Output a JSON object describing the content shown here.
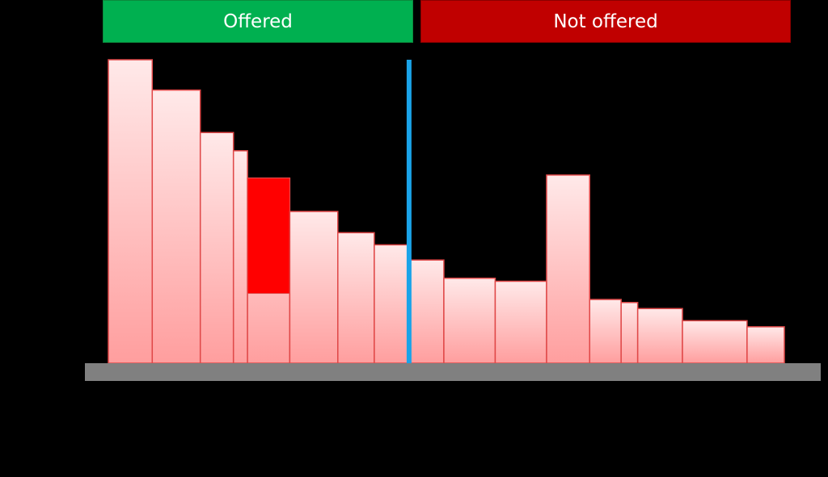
{
  "groups": {
    "offered": {
      "label": "Offered",
      "color": "#00b050"
    },
    "not_offered": {
      "label": "Not offered",
      "color": "#c00000"
    }
  },
  "colors": {
    "background": "#000000",
    "bar_fill_top": "#ffe9e9",
    "bar_fill_bottom": "#ff9e9e",
    "bar_stroke": "#e04848",
    "highlight": "#ff0000",
    "divider": "#1aa3e8",
    "baseline": "#808080"
  },
  "chart_data": {
    "type": "bar",
    "note_units": "relative (tallest bar = 100); bar widths are relative category widths",
    "ylim": [
      0,
      100
    ],
    "bars": [
      {
        "group": "offered",
        "width": 53,
        "value": 100
      },
      {
        "group": "offered",
        "width": 58,
        "value": 90
      },
      {
        "group": "offered",
        "width": 40,
        "value": 76
      },
      {
        "group": "offered",
        "width": 17,
        "value": 70
      },
      {
        "group": "offered",
        "width": 51,
        "value": 61,
        "highlight_above": 23
      },
      {
        "group": "offered",
        "width": 58,
        "value": 50
      },
      {
        "group": "offered",
        "width": 44,
        "value": 43
      },
      {
        "group": "offered",
        "width": 42,
        "value": 39
      },
      {
        "group": "not_offered",
        "width": 42,
        "value": 34
      },
      {
        "group": "not_offered",
        "width": 62,
        "value": 28
      },
      {
        "group": "not_offered",
        "width": 62,
        "value": 27
      },
      {
        "group": "not_offered",
        "width": 52,
        "value": 62
      },
      {
        "group": "not_offered",
        "width": 38,
        "value": 21
      },
      {
        "group": "not_offered",
        "width": 20,
        "value": 20
      },
      {
        "group": "not_offered",
        "width": 54,
        "value": 18
      },
      {
        "group": "not_offered",
        "width": 78,
        "value": 14
      },
      {
        "group": "not_offered",
        "width": 45,
        "value": 12
      }
    ],
    "divider_after_bar": 8
  }
}
